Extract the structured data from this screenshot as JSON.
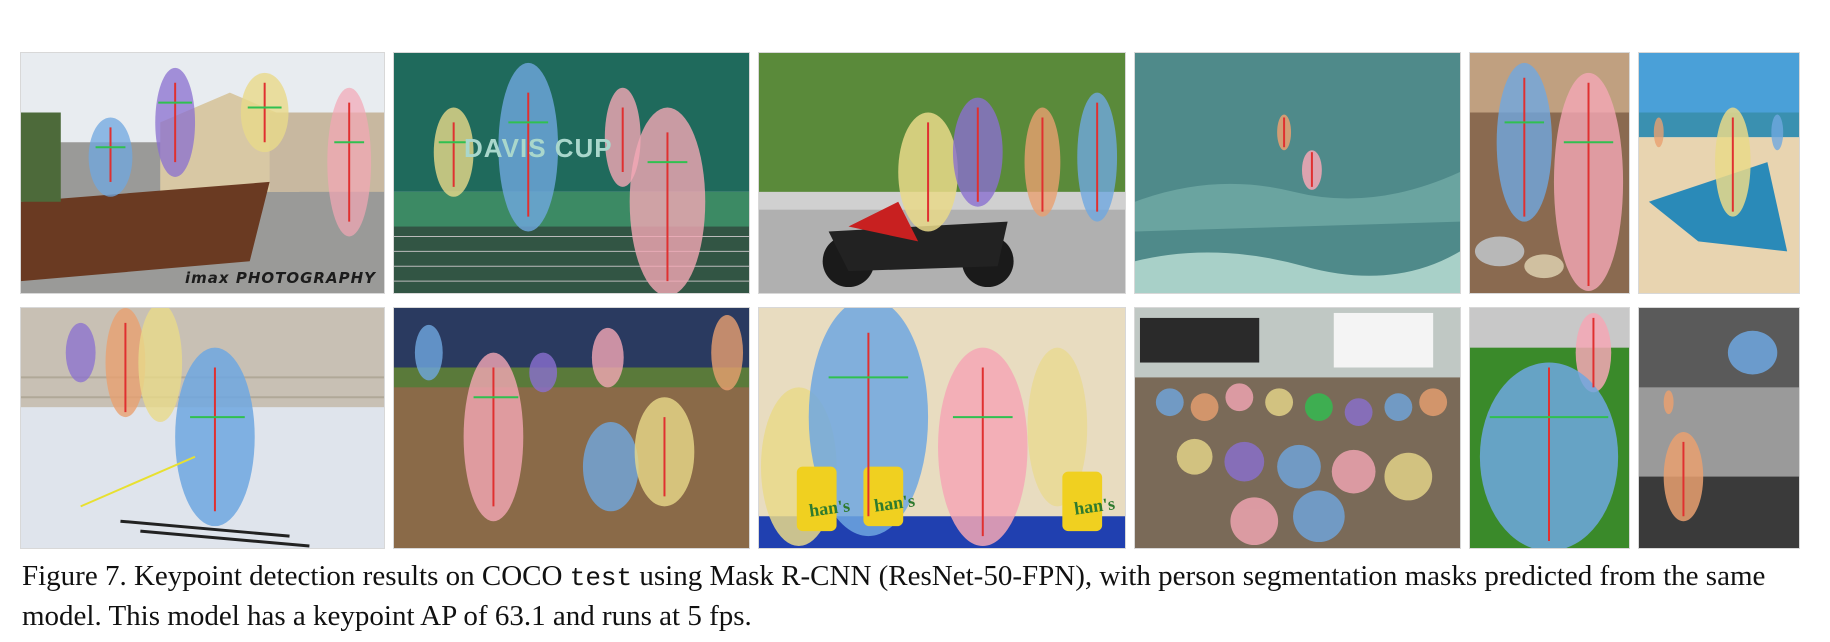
{
  "figure": {
    "panels": [
      {
        "id": "skateboard-park",
        "watermark": "imax PHOTOGRAPHY"
      },
      {
        "id": "tennis-court",
        "sign_text": "DAVIS CUP"
      },
      {
        "id": "motorcycle-street"
      },
      {
        "id": "ocean-surfers"
      },
      {
        "id": "kitchen-cooking"
      },
      {
        "id": "beach-kite"
      },
      {
        "id": "ski-slope"
      },
      {
        "id": "baseball-field"
      },
      {
        "id": "press-conference",
        "cup_label": "han's"
      },
      {
        "id": "classroom"
      },
      {
        "id": "backyard-child"
      },
      {
        "id": "bw-skate-park"
      }
    ],
    "caption": {
      "prefix": "Figure 7. Keypoint detection results on COCO",
      "code": "test",
      "suffix": "using Mask R-CNN (ResNet-50-FPN), with person segmentation masks predicted from the same model. This model has a keypoint AP of 63.1 and runs at 5 fps."
    },
    "colors": {
      "mask_blue": "#6fa7e0",
      "mask_pink": "#f4a7b5",
      "mask_yellow": "#e9d98a",
      "mask_purple": "#8a6fd0",
      "mask_orange": "#e9a070",
      "keypoint_red": "#e03030",
      "keypoint_green": "#30c050"
    }
  }
}
